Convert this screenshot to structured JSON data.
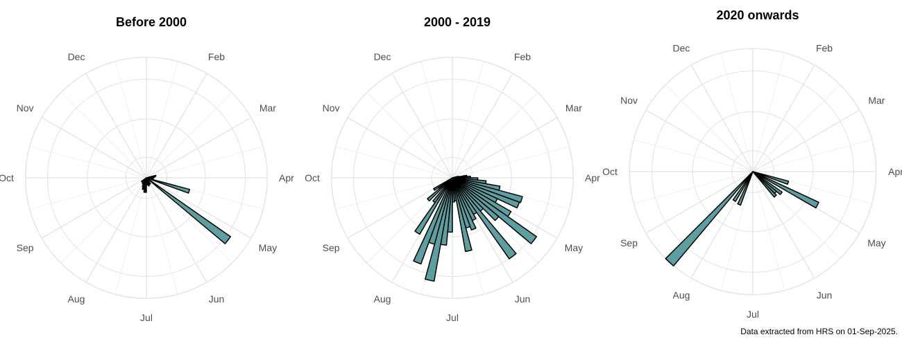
{
  "caption": "Data extracted from HRS on 01-Sep-2025.",
  "colors": {
    "bar_fill": "#5f9ea0",
    "bar_stroke": "#000000",
    "grid": "#e6e6e6"
  },
  "chart_data": [
    {
      "type": "bar",
      "coordinate_system": "polar",
      "title": "Before 2000",
      "month_labels": [
        "Jan",
        "Feb",
        "Mar",
        "Apr",
        "May",
        "Jun",
        "Jul",
        "Aug",
        "Sep",
        "Oct",
        "Nov",
        "Dec"
      ],
      "grid": true,
      "rmax": 10,
      "x": [
        0,
        5,
        10,
        15,
        20,
        25,
        30,
        35,
        40,
        45,
        50,
        55,
        60,
        65,
        70,
        75,
        80,
        85,
        90,
        95,
        100,
        105,
        110,
        115,
        120,
        125,
        130,
        135,
        140,
        145,
        150,
        155,
        160,
        165,
        170,
        175,
        180,
        185,
        190,
        195,
        200,
        205,
        210,
        215,
        220,
        225,
        230,
        235,
        240,
        245,
        250,
        255,
        260,
        265,
        270,
        275,
        280,
        285,
        290,
        295,
        300,
        305,
        310,
        315,
        320,
        325,
        330,
        335,
        340,
        345,
        350,
        355
      ],
      "values": [
        0,
        0,
        0,
        0,
        0,
        0,
        0,
        0,
        0,
        0,
        0,
        0,
        0,
        0,
        0,
        0.8,
        0.7,
        0.6,
        0.6,
        0.5,
        0.5,
        3.7,
        0,
        0,
        0,
        8.5,
        0,
        0,
        0,
        0.6,
        0,
        0.6,
        0.7,
        0,
        0.6,
        0,
        1.2,
        1.2,
        0,
        1.0,
        0.8,
        0.6,
        0.6,
        0.5,
        0,
        0.5,
        0.5,
        0,
        0,
        0,
        0,
        0,
        0,
        0,
        0,
        0,
        0,
        0,
        0,
        0,
        0,
        0,
        0,
        0,
        0,
        0,
        0,
        0,
        0,
        0,
        0,
        0
      ]
    },
    {
      "type": "bar",
      "coordinate_system": "polar",
      "title": "2000 - 2019",
      "month_labels": [
        "Jan",
        "Feb",
        "Mar",
        "Apr",
        "May",
        "Jun",
        "Jul",
        "Aug",
        "Sep",
        "Oct",
        "Nov",
        "Dec"
      ],
      "grid": true,
      "rmax": 10,
      "x": [
        0,
        5,
        10,
        15,
        20,
        25,
        30,
        35,
        40,
        45,
        50,
        55,
        60,
        65,
        70,
        75,
        80,
        85,
        90,
        95,
        100,
        105,
        110,
        115,
        120,
        125,
        130,
        135,
        140,
        145,
        150,
        155,
        160,
        165,
        170,
        175,
        180,
        185,
        190,
        195,
        200,
        205,
        210,
        215,
        220,
        225,
        230,
        235,
        240,
        245,
        250,
        255,
        260,
        265,
        270,
        275,
        280,
        285,
        290,
        295,
        300,
        305,
        310,
        315,
        320,
        325,
        330,
        335,
        340,
        345,
        350,
        355
      ],
      "values": [
        0,
        0,
        0,
        0,
        0,
        0,
        0,
        0,
        0,
        0,
        0,
        0,
        0,
        0,
        0,
        0.5,
        1.2,
        1.5,
        2.1,
        2.8,
        4.0,
        6.0,
        5.9,
        4.1,
        5.6,
        8.5,
        5.0,
        3.6,
        8.2,
        3.5,
        3.9,
        4.6,
        4.3,
        6.2,
        1.9,
        2.0,
        4.5,
        5.6,
        8.7,
        5.7,
        7.6,
        0,
        5.4,
        2.5,
        0.5,
        2.7,
        1.4,
        1.8,
        0,
        0,
        0,
        0,
        0,
        0,
        0,
        0,
        0,
        0,
        0,
        0,
        0,
        0,
        0,
        0,
        0,
        0,
        0,
        0,
        0,
        0,
        0,
        0
      ]
    },
    {
      "type": "bar",
      "coordinate_system": "polar",
      "title": "2020 onwards",
      "month_labels": [
        "Jan",
        "Feb",
        "Mar",
        "Apr",
        "May",
        "Jun",
        "Jul",
        "Aug",
        "Sep",
        "Oct",
        "Nov",
        "Dec"
      ],
      "grid": true,
      "rmax": 10,
      "x": [
        0,
        5,
        10,
        15,
        20,
        25,
        30,
        35,
        40,
        45,
        50,
        55,
        60,
        65,
        70,
        75,
        80,
        85,
        90,
        95,
        100,
        105,
        110,
        115,
        120,
        125,
        130,
        135,
        140,
        145,
        150,
        155,
        160,
        165,
        170,
        175,
        180,
        185,
        190,
        195,
        200,
        205,
        210,
        215,
        220,
        225,
        230,
        235,
        240,
        245,
        250,
        255,
        260,
        265,
        270,
        275,
        280,
        285,
        290,
        295,
        300,
        305,
        310,
        315,
        320,
        325,
        330,
        335,
        340,
        345,
        350,
        355
      ],
      "values": [
        0,
        0,
        0,
        0,
        0,
        0,
        0,
        0,
        0,
        0,
        0,
        0,
        0,
        0,
        0,
        0,
        0,
        0,
        0,
        0,
        0,
        3.0,
        0,
        5.9,
        0,
        2.9,
        2.5,
        2.7,
        0,
        0,
        0,
        0,
        0,
        0,
        0,
        0,
        0,
        0,
        0,
        0,
        2.9,
        0,
        2.8,
        0,
        10.0,
        0,
        0,
        0,
        0,
        0,
        0,
        0,
        0,
        0,
        0,
        0,
        0,
        0,
        0,
        0,
        0,
        0,
        0,
        0,
        0,
        0,
        0,
        0,
        0,
        0,
        0,
        0
      ]
    }
  ]
}
